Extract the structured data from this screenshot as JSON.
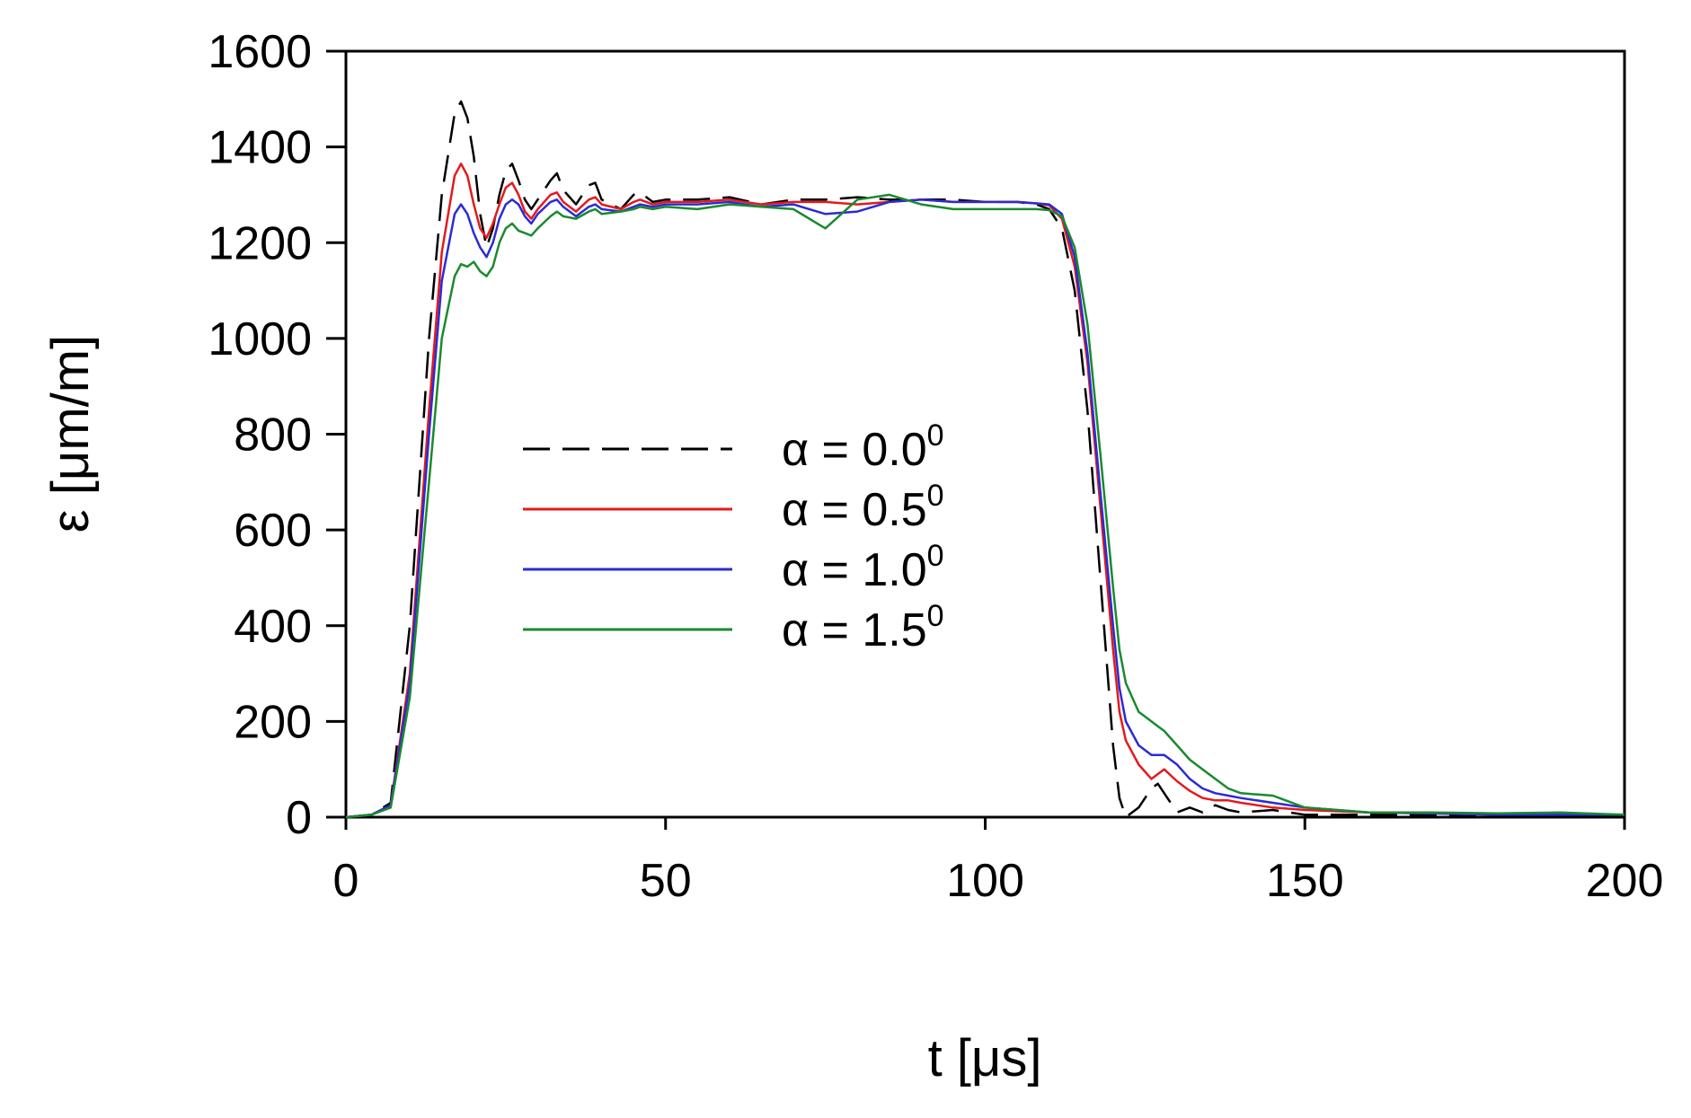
{
  "chart_data": {
    "type": "line",
    "title": "",
    "xlabel": "t [μs]",
    "ylabel": "ε [μm/m]",
    "xlim": [
      0,
      200
    ],
    "ylim": [
      0,
      1600
    ],
    "xticks": [
      "0",
      "50",
      "100",
      "150",
      "200"
    ],
    "yticks": [
      "0",
      "200",
      "400",
      "600",
      "800",
      "1000",
      "1200",
      "1400",
      "1600"
    ],
    "grid": false,
    "legend_position": "center",
    "series": [
      {
        "name": "α = 0.0",
        "name_sup": "0",
        "color": "#000000",
        "dash": true,
        "x": [
          0,
          4,
          7,
          10,
          13,
          15,
          17,
          18,
          19,
          20,
          21,
          22,
          23,
          24,
          25,
          26,
          27,
          28,
          29,
          30,
          32,
          33,
          34,
          36,
          38,
          39,
          40,
          43,
          45,
          46,
          48,
          50,
          55,
          60,
          65,
          70,
          75,
          80,
          85,
          90,
          95,
          100,
          105,
          108,
          110,
          112,
          114,
          116,
          118,
          120,
          121,
          122,
          124,
          126,
          127,
          128,
          130,
          132,
          134,
          136,
          138,
          140,
          145,
          150,
          160,
          170,
          180,
          190,
          200
        ],
        "y": [
          0,
          5,
          30,
          400,
          1000,
          1300,
          1470,
          1495,
          1460,
          1380,
          1260,
          1190,
          1230,
          1300,
          1350,
          1365,
          1330,
          1290,
          1270,
          1290,
          1330,
          1345,
          1310,
          1280,
          1320,
          1325,
          1290,
          1270,
          1300,
          1305,
          1285,
          1290,
          1290,
          1295,
          1280,
          1290,
          1290,
          1295,
          1290,
          1290,
          1290,
          1285,
          1285,
          1280,
          1270,
          1230,
          1100,
          850,
          500,
          150,
          40,
          0,
          20,
          60,
          70,
          50,
          10,
          20,
          10,
          25,
          15,
          10,
          15,
          5,
          5,
          5,
          3,
          3,
          3
        ]
      },
      {
        "name": "α = 0.5",
        "name_sup": "0",
        "color": "#e41a1c",
        "dash": false,
        "x": [
          0,
          4,
          7,
          10,
          13,
          15,
          17,
          18,
          19,
          20,
          21,
          22,
          23,
          24,
          25,
          26,
          27,
          28,
          29,
          30,
          32,
          33,
          34,
          36,
          38,
          39,
          40,
          43,
          45,
          46,
          48,
          50,
          55,
          60,
          65,
          70,
          75,
          80,
          85,
          90,
          95,
          100,
          105,
          108,
          110,
          112,
          114,
          116,
          118,
          120,
          121,
          122,
          124,
          126,
          127,
          128,
          130,
          132,
          134,
          136,
          138,
          140,
          145,
          150,
          160,
          170,
          180,
          190,
          200
        ],
        "y": [
          0,
          5,
          25,
          300,
          850,
          1180,
          1340,
          1365,
          1340,
          1280,
          1230,
          1210,
          1240,
          1280,
          1315,
          1325,
          1300,
          1265,
          1250,
          1270,
          1300,
          1305,
          1285,
          1265,
          1290,
          1295,
          1280,
          1270,
          1285,
          1290,
          1280,
          1285,
          1285,
          1290,
          1280,
          1285,
          1285,
          1280,
          1285,
          1290,
          1285,
          1285,
          1285,
          1282,
          1278,
          1250,
          1150,
          950,
          650,
          350,
          220,
          160,
          110,
          80,
          90,
          100,
          75,
          55,
          40,
          35,
          35,
          30,
          20,
          15,
          10,
          8,
          5,
          5,
          5
        ]
      },
      {
        "name": "α = 1.0",
        "name_sup": "0",
        "color": "#2b2bd4",
        "dash": false,
        "x": [
          0,
          4,
          7,
          10,
          13,
          15,
          17,
          18,
          19,
          20,
          21,
          22,
          23,
          24,
          25,
          26,
          27,
          28,
          29,
          30,
          32,
          33,
          34,
          36,
          38,
          39,
          40,
          43,
          45,
          46,
          48,
          50,
          55,
          60,
          65,
          70,
          75,
          80,
          85,
          90,
          95,
          100,
          105,
          108,
          110,
          112,
          114,
          116,
          118,
          120,
          121,
          122,
          124,
          126,
          127,
          128,
          130,
          132,
          134,
          136,
          138,
          140,
          145,
          150,
          160,
          170,
          180,
          190,
          200
        ],
        "y": [
          0,
          5,
          25,
          280,
          800,
          1120,
          1260,
          1280,
          1260,
          1220,
          1190,
          1170,
          1200,
          1250,
          1280,
          1290,
          1280,
          1255,
          1240,
          1260,
          1285,
          1290,
          1275,
          1255,
          1275,
          1280,
          1270,
          1265,
          1275,
          1280,
          1275,
          1280,
          1280,
          1285,
          1275,
          1280,
          1260,
          1265,
          1285,
          1290,
          1285,
          1285,
          1285,
          1282,
          1280,
          1260,
          1170,
          970,
          680,
          400,
          270,
          200,
          150,
          130,
          130,
          130,
          110,
          80,
          60,
          50,
          45,
          40,
          30,
          20,
          10,
          8,
          5,
          5,
          5
        ]
      },
      {
        "name": "α = 1.5",
        "name_sup": "0",
        "color": "#1a8a2e",
        "dash": false,
        "x": [
          0,
          4,
          7,
          10,
          13,
          15,
          17,
          18,
          19,
          20,
          21,
          22,
          23,
          24,
          25,
          26,
          27,
          28,
          29,
          30,
          32,
          33,
          34,
          36,
          38,
          39,
          40,
          43,
          45,
          46,
          48,
          50,
          55,
          60,
          65,
          70,
          75,
          80,
          85,
          90,
          95,
          100,
          105,
          108,
          110,
          112,
          114,
          116,
          118,
          120,
          121,
          122,
          124,
          126,
          127,
          128,
          130,
          132,
          134,
          136,
          138,
          140,
          145,
          150,
          160,
          170,
          180,
          190,
          200
        ],
        "y": [
          0,
          5,
          20,
          250,
          700,
          1000,
          1130,
          1155,
          1150,
          1160,
          1140,
          1130,
          1150,
          1200,
          1230,
          1240,
          1225,
          1220,
          1215,
          1230,
          1255,
          1265,
          1255,
          1250,
          1265,
          1270,
          1260,
          1265,
          1270,
          1275,
          1270,
          1275,
          1270,
          1280,
          1275,
          1270,
          1230,
          1290,
          1300,
          1280,
          1270,
          1270,
          1270,
          1270,
          1268,
          1255,
          1190,
          1030,
          760,
          480,
          350,
          280,
          220,
          200,
          190,
          180,
          150,
          120,
          100,
          80,
          60,
          50,
          45,
          20,
          10,
          10,
          8,
          10,
          5
        ]
      }
    ]
  }
}
